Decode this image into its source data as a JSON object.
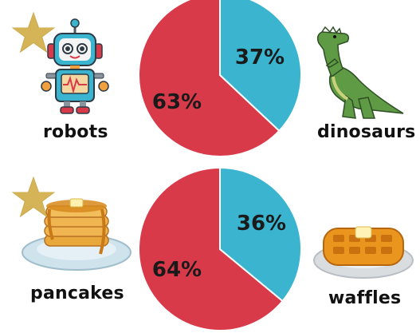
{
  "chart_data": [
    {
      "type": "pie",
      "slices": [
        {
          "name": "robots",
          "value": 63,
          "label": "63%",
          "color": "#d93a4a"
        },
        {
          "name": "dinosaurs",
          "value": 37,
          "label": "37%",
          "color": "#3ab4cf"
        }
      ]
    },
    {
      "type": "pie",
      "slices": [
        {
          "name": "pancakes",
          "value": 64,
          "label": "64%",
          "color": "#d93a4a"
        },
        {
          "name": "waffles",
          "value": 36,
          "label": "36%",
          "color": "#3ab4cf"
        }
      ]
    }
  ],
  "labels": {
    "robots": "robots",
    "dinosaurs": "dinosaurs",
    "pancakes": "pancakes",
    "waffles": "waffles"
  },
  "icons": [
    "star-icon",
    "robot-icon",
    "dinosaur-icon",
    "star-icon",
    "pancakes-icon",
    "waffles-icon"
  ],
  "colors": {
    "red": "#d93a4a",
    "blue": "#3ab4cf",
    "gold": "#c9a84a"
  }
}
